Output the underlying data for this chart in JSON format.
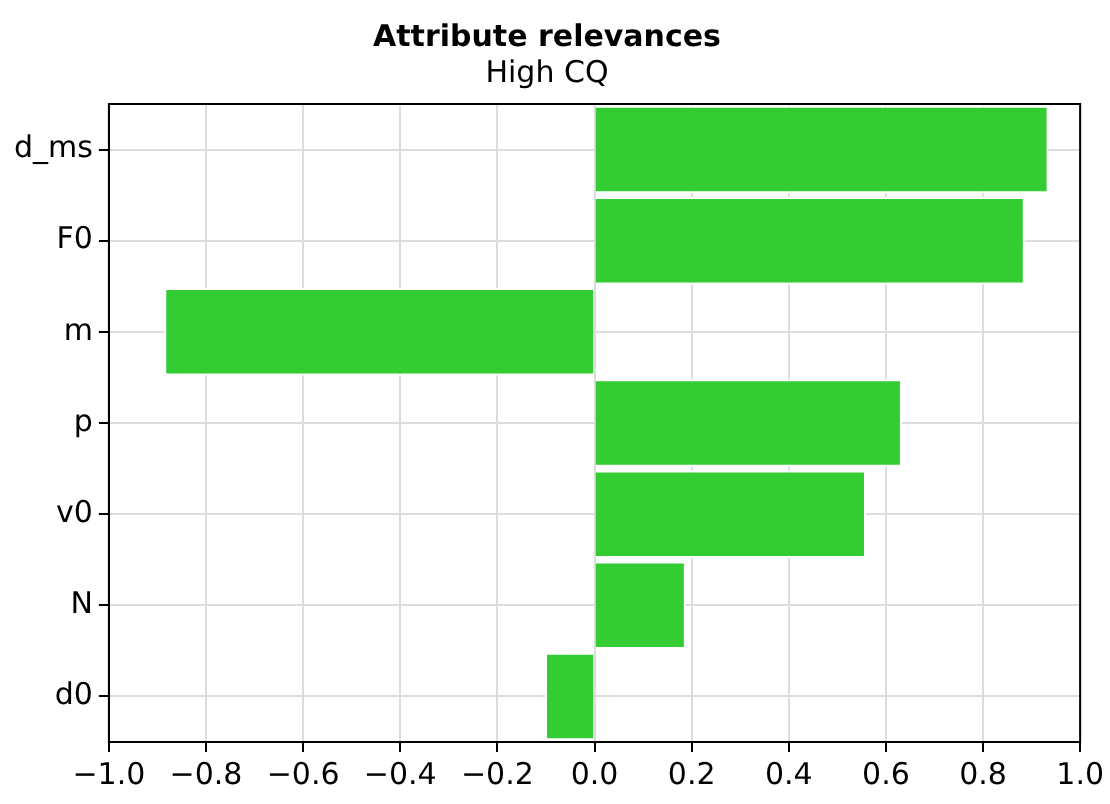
{
  "chart_data": {
    "type": "bar",
    "orientation": "horizontal",
    "title": "Attribute relevances",
    "subtitle": "High CQ",
    "categories": [
      "d_ms",
      "F0",
      "m",
      "p",
      "v0",
      "N",
      "d0"
    ],
    "values": [
      0.935,
      0.886,
      -0.886,
      0.633,
      0.559,
      0.188,
      -0.102
    ],
    "color": "#33cc33",
    "xlim": [
      -1.0,
      1.0
    ],
    "xticks": [
      {
        "value": -1.0,
        "label": "−1.0"
      },
      {
        "value": -0.8,
        "label": "−0.8"
      },
      {
        "value": -0.6,
        "label": "−0.6"
      },
      {
        "value": -0.4,
        "label": "−0.4"
      },
      {
        "value": -0.2,
        "label": "−0.2"
      },
      {
        "value": 0,
        "label": "0.0"
      },
      {
        "value": 0.2,
        "label": "0.2"
      },
      {
        "value": 0.4,
        "label": "0.4"
      },
      {
        "value": 0.6,
        "label": "0.6"
      },
      {
        "value": 0.8,
        "label": "0.8"
      },
      {
        "value": 1.0,
        "label": "1.0"
      }
    ],
    "grid": true,
    "legend": false
  }
}
